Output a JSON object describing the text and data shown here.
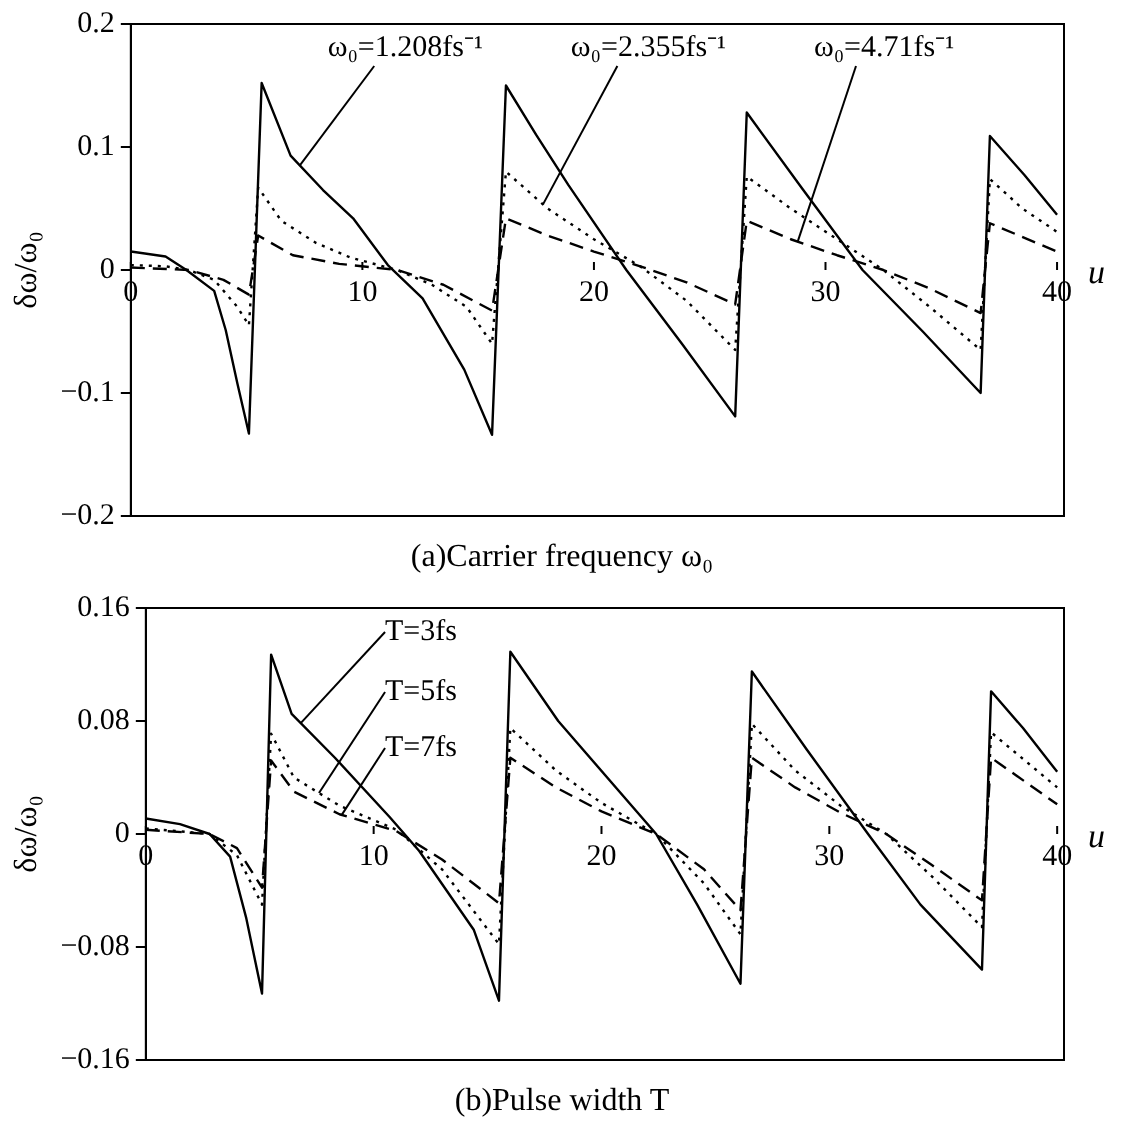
{
  "chart_data": [
    {
      "type": "line",
      "title": "(a)Carrier frequency ω₀",
      "xlabel": "u",
      "ylabel": "δω/ω₀",
      "xlim": [
        0,
        40.3
      ],
      "xticks": [
        0,
        10,
        20,
        30,
        40
      ],
      "ylim": [
        -0.2,
        0.2
      ],
      "yticks": [
        {
          "value": -0.2,
          "label": "−0.2"
        },
        {
          "value": -0.1,
          "label": "−0.1"
        },
        0,
        0.1,
        0.2
      ],
      "grid": false,
      "legend": false,
      "marker": "none",
      "series": [
        {
          "name": "ω₀=1.208fs⁻¹",
          "color": "#000000",
          "line_style": "solid",
          "x": [
            0,
            1.5,
            2.4,
            3.6,
            4.1,
            4.6,
            5.1,
            5.65,
            6.9,
            8.3,
            9.6,
            11.1,
            12.6,
            14.4,
            15.6,
            16.2,
            17.5,
            18.9,
            21.4,
            23.8,
            26.1,
            26.6,
            29,
            31.6,
            34.2,
            36.7,
            37.1,
            38.6,
            40
          ],
          "values": [
            0.015,
            0.011,
            0,
            -0.017,
            -0.049,
            -0.092,
            -0.133,
            0.152,
            0.093,
            0.065,
            0.042,
            0.004,
            -0.023,
            -0.081,
            -0.134,
            0.15,
            0.11,
            0.069,
            0,
            -0.06,
            -0.119,
            0.128,
            0.066,
            0,
            -0.05,
            -0.1,
            0.109,
            0.077,
            0.045
          ]
        },
        {
          "name": "ω₀=2.355fs⁻¹",
          "color": "#000000",
          "line_style": "dotted",
          "x": [
            0,
            1.5,
            2.5,
            3.6,
            4.6,
            5.1,
            5.5,
            6.5,
            8,
            9.5,
            11.5,
            13,
            14.5,
            15.6,
            16.2,
            18,
            20,
            22,
            24,
            26.1,
            26.6,
            28.5,
            30.5,
            32.5,
            34.5,
            36.7,
            37.1,
            38.5,
            40
          ],
          "values": [
            0.004,
            0.003,
            0,
            -0.008,
            -0.03,
            -0.045,
            0.067,
            0.04,
            0.022,
            0.01,
            0,
            -0.012,
            -0.03,
            -0.06,
            0.08,
            0.05,
            0.025,
            0.003,
            -0.025,
            -0.065,
            0.076,
            0.05,
            0.025,
            0,
            -0.03,
            -0.065,
            0.074,
            0.05,
            0.031
          ]
        },
        {
          "name": "ω₀=4.71fs⁻¹",
          "color": "#000000",
          "line_style": "dashed",
          "x": [
            0,
            2.5,
            4,
            5.1,
            5.5,
            7,
            9,
            11.5,
            13.5,
            15.6,
            16.2,
            18,
            20,
            22,
            24,
            26.1,
            26.6,
            28.5,
            30.5,
            32.5,
            34.5,
            36.7,
            37.1,
            40
          ],
          "values": [
            0.002,
            0,
            -0.008,
            -0.02,
            0.028,
            0.012,
            0.005,
            0,
            -0.012,
            -0.033,
            0.042,
            0.028,
            0.015,
            0.003,
            -0.01,
            -0.028,
            0.04,
            0.025,
            0.012,
            0,
            -0.015,
            -0.035,
            0.038,
            0.015
          ]
        }
      ]
    },
    {
      "type": "line",
      "title": "(b)Pulse width T",
      "xlabel": "u",
      "ylabel": "δω/ω₀",
      "xlim": [
        0,
        40.3
      ],
      "xticks": [
        0,
        10,
        20,
        30,
        40
      ],
      "ylim": [
        -0.16,
        0.16
      ],
      "yticks": [
        {
          "value": -0.16,
          "label": "−0.16"
        },
        {
          "value": -0.08,
          "label": "−0.08"
        },
        0,
        0.08,
        0.16
      ],
      "grid": false,
      "legend": false,
      "marker": "none",
      "series": [
        {
          "name": "T=3fs",
          "color": "#000000",
          "line_style": "solid",
          "x": [
            0,
            1.5,
            2.8,
            3.7,
            4.4,
            5.1,
            5.5,
            6.4,
            8.3,
            10.7,
            12,
            14.4,
            15.5,
            16,
            18.1,
            22.4,
            24.2,
            26.1,
            26.6,
            29,
            31.7,
            34,
            36.7,
            37.1,
            38.5,
            40
          ],
          "values": [
            0.011,
            0.007,
            0,
            -0.016,
            -0.059,
            -0.113,
            0.127,
            0.085,
            0.054,
            0.012,
            -0.012,
            -0.068,
            -0.118,
            0.129,
            0.08,
            0,
            -0.05,
            -0.106,
            0.115,
            0.06,
            0,
            -0.05,
            -0.096,
            0.101,
            0.075,
            0.044
          ]
        },
        {
          "name": "T=5fs",
          "color": "#000000",
          "line_style": "dotted",
          "x": [
            0,
            2.8,
            4,
            5.1,
            5.5,
            6.5,
            8.5,
            11,
            13,
            15.5,
            16,
            18,
            20,
            22.4,
            24.5,
            26.1,
            26.6,
            28.5,
            30.5,
            32.5,
            34.5,
            36.7,
            37.1,
            40
          ],
          "values": [
            0.004,
            0,
            -0.015,
            -0.05,
            0.071,
            0.04,
            0.02,
            0.003,
            -0.025,
            -0.078,
            0.075,
            0.045,
            0.022,
            0,
            -0.035,
            -0.071,
            0.078,
            0.045,
            0.02,
            0,
            -0.03,
            -0.066,
            0.072,
            0.033
          ]
        },
        {
          "name": "T=7fs",
          "color": "#000000",
          "line_style": "dashed",
          "x": [
            0,
            2.8,
            4,
            5.1,
            5.5,
            6.5,
            8.5,
            11,
            13,
            15.5,
            16,
            18,
            20,
            22.4,
            24.5,
            26.1,
            26.6,
            28.5,
            30.5,
            32.5,
            34.5,
            36.7,
            37.1,
            40
          ],
          "values": [
            0.003,
            0,
            -0.01,
            -0.038,
            0.052,
            0.03,
            0.014,
            0.002,
            -0.018,
            -0.049,
            0.054,
            0.033,
            0.016,
            0,
            -0.025,
            -0.054,
            0.054,
            0.033,
            0.015,
            0,
            -0.022,
            -0.047,
            0.054,
            0.021
          ]
        }
      ]
    }
  ]
}
